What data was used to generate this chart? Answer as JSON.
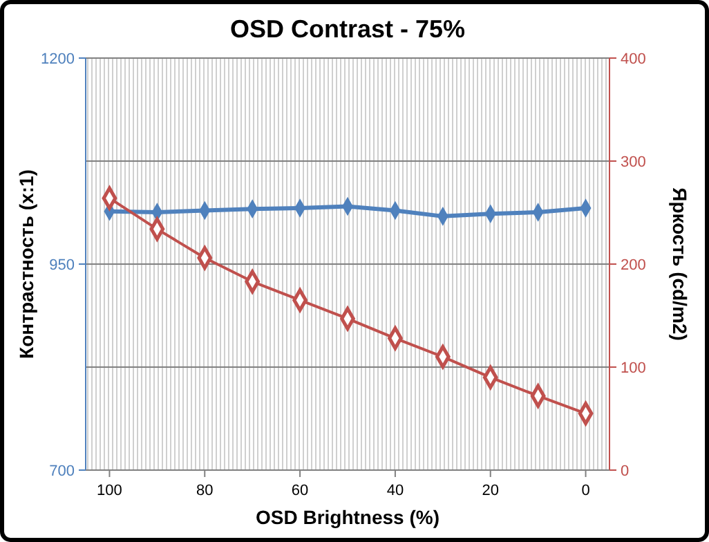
{
  "chart_data": {
    "type": "line",
    "title": "OSD Contrast - 75%",
    "xlabel": "OSD Brightness (%)",
    "ylabel": "Контрастность (x:1)",
    "y2label": "Яркость (cd/m2)",
    "x": [
      100,
      90,
      80,
      70,
      60,
      50,
      40,
      30,
      20,
      10,
      0
    ],
    "xlim": [
      105,
      -5
    ],
    "xticks": [
      100,
      80,
      60,
      40,
      20,
      0
    ],
    "ylim": [
      700,
      1200
    ],
    "yticks": [
      700,
      950,
      1200
    ],
    "y2lim": [
      0,
      400
    ],
    "y2ticks": [
      0,
      100,
      200,
      300,
      400
    ],
    "grid": "y",
    "marker": "diamond",
    "line_style": "solid",
    "series": [
      {
        "color": "#4f81bd",
        "values": [
          1014,
          1013,
          1015,
          1017,
          1018,
          1020,
          1015,
          1008,
          1011,
          1013,
          1018
        ]
      },
      {
        "color": "#c0504d",
        "axis": "y2",
        "values": [
          264,
          234,
          206,
          183,
          165,
          147,
          128,
          110,
          90,
          72,
          55
        ]
      }
    ]
  }
}
